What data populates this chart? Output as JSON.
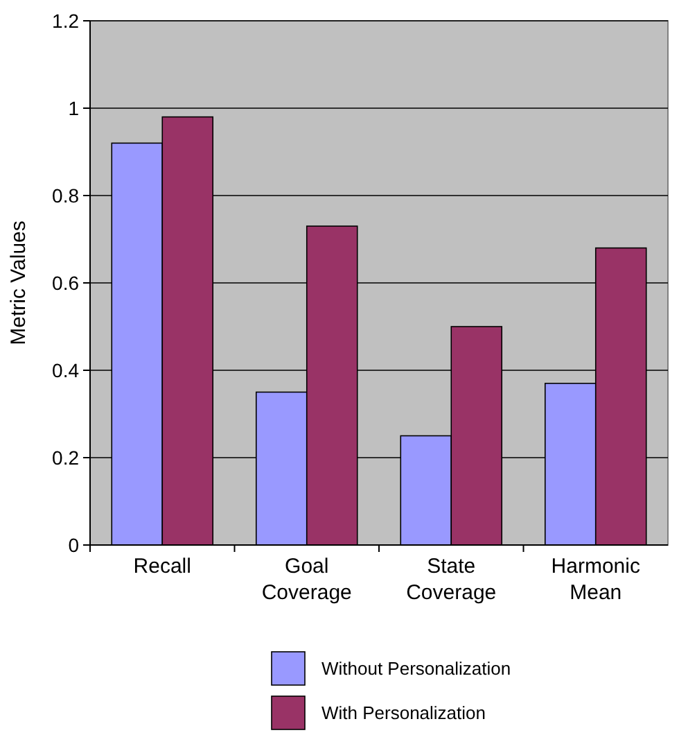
{
  "chart_data": {
    "type": "bar",
    "ylabel": "Metric Values",
    "categories": [
      "Recall",
      "Goal Coverage",
      "State Coverage",
      "Harmonic Mean"
    ],
    "series": [
      {
        "name": "Without Personalization",
        "color": "#9999ff",
        "values": [
          0.92,
          0.35,
          0.25,
          0.37
        ]
      },
      {
        "name": "With Personalization",
        "color": "#993366",
        "values": [
          0.98,
          0.73,
          0.5,
          0.68
        ]
      }
    ],
    "ylim": [
      0,
      1.2
    ],
    "yticks": [
      0,
      0.2,
      0.4,
      0.6,
      0.8,
      1,
      1.2
    ],
    "grid": "y",
    "legend": "bottom"
  }
}
